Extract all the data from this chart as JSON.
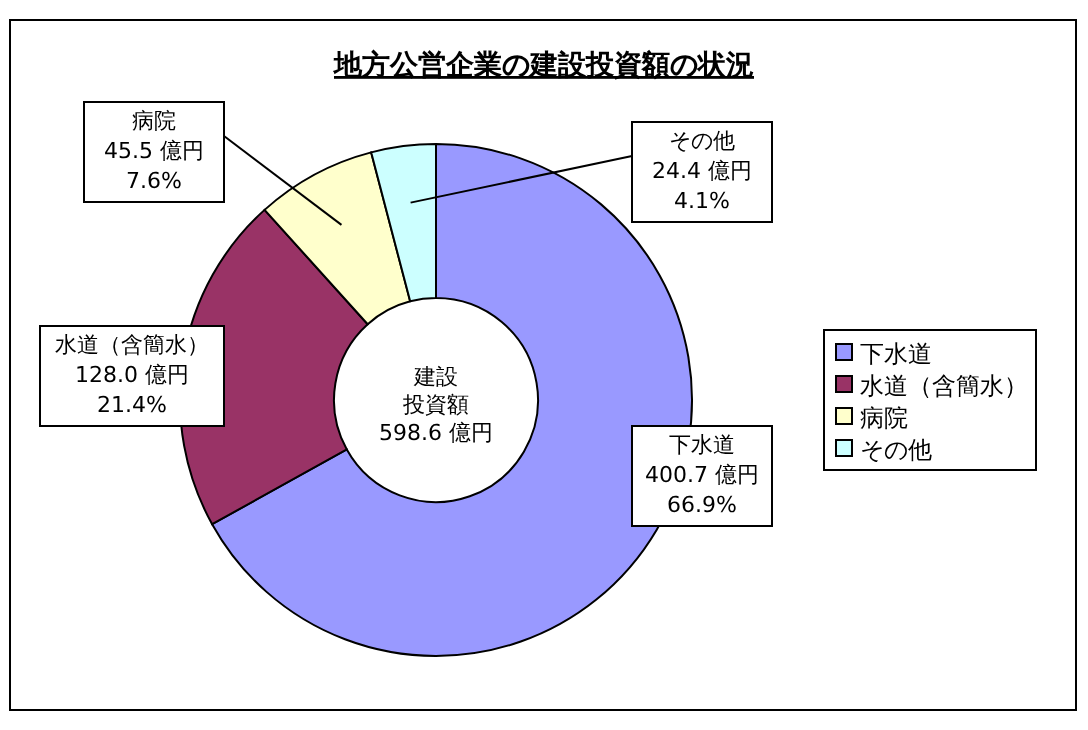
{
  "chart_data": {
    "type": "donut",
    "title": "地方公営企業の建設投資額の状況",
    "categories": [
      "下水道",
      "水道（含簡水）",
      "病院",
      "その他"
    ],
    "values": [
      400.7,
      128.0,
      45.5,
      24.4
    ],
    "colors": [
      "#9999ff",
      "#993366",
      "#ffffcc",
      "#ccffff"
    ],
    "value_labels": [
      "400.7 億円\n66.9%",
      "128.0 億円\n21.4%",
      "45.5 億円\n7.6%",
      "24.4 億円\n4.1%"
    ],
    "annotations": [
      "建設投資額",
      "598.6 億円"
    ],
    "legend": "right"
  }
}
